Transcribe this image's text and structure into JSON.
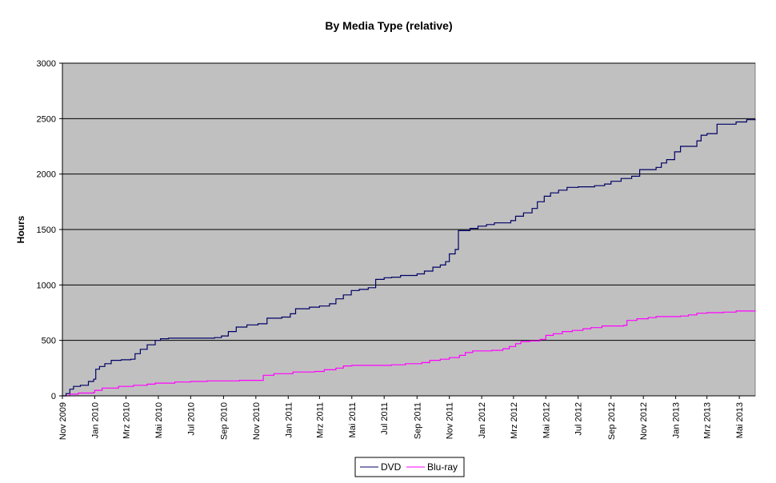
{
  "chart_data": {
    "type": "line",
    "title": "By Media Type (relative)",
    "xlabel": "",
    "ylabel": "Hours",
    "ylim": [
      0,
      3000
    ],
    "yticks": [
      "0",
      "500",
      "1000",
      "1500",
      "2000",
      "2500",
      "3000"
    ],
    "x_range": [
      "2009-11-01",
      "2013-05-31"
    ],
    "xticks": [
      {
        "date": "2009-11-01",
        "label": "Nov 2009"
      },
      {
        "date": "2010-01-01",
        "label": "Jan 2010"
      },
      {
        "date": "2010-03-01",
        "label": "Mrz 2010"
      },
      {
        "date": "2010-05-01",
        "label": "Mai 2010"
      },
      {
        "date": "2010-07-01",
        "label": "Jul 2010"
      },
      {
        "date": "2010-09-01",
        "label": "Sep 2010"
      },
      {
        "date": "2010-11-01",
        "label": "Nov 2010"
      },
      {
        "date": "2011-01-01",
        "label": "Jan 2011"
      },
      {
        "date": "2011-03-01",
        "label": "Mrz 2011"
      },
      {
        "date": "2011-05-01",
        "label": "Mai 2011"
      },
      {
        "date": "2011-07-01",
        "label": "Jul 2011"
      },
      {
        "date": "2011-09-01",
        "label": "Sep 2011"
      },
      {
        "date": "2011-11-01",
        "label": "Nov 2011"
      },
      {
        "date": "2012-01-01",
        "label": "Jan 2012"
      },
      {
        "date": "2012-03-01",
        "label": "Mrz 2012"
      },
      {
        "date": "2012-05-01",
        "label": "Mai 2012"
      },
      {
        "date": "2012-07-01",
        "label": "Jul 2012"
      },
      {
        "date": "2012-09-01",
        "label": "Sep 2012"
      },
      {
        "date": "2012-11-01",
        "label": "Nov 2012"
      },
      {
        "date": "2013-01-01",
        "label": "Jan 2013"
      },
      {
        "date": "2013-03-01",
        "label": "Mrz 2013"
      },
      {
        "date": "2013-05-01",
        "label": "Mai 2013"
      }
    ],
    "grid": true,
    "legend_position": "bottom",
    "series": [
      {
        "name": "DVD",
        "color": "#000066",
        "points": [
          [
            "2009-11-01",
            0
          ],
          [
            "2009-11-08",
            20
          ],
          [
            "2009-11-15",
            60
          ],
          [
            "2009-11-22",
            85
          ],
          [
            "2009-12-05",
            95
          ],
          [
            "2009-12-20",
            130
          ],
          [
            "2009-12-30",
            150
          ],
          [
            "2010-01-03",
            240
          ],
          [
            "2010-01-10",
            265
          ],
          [
            "2010-01-20",
            290
          ],
          [
            "2010-02-01",
            320
          ],
          [
            "2010-02-20",
            325
          ],
          [
            "2010-03-10",
            330
          ],
          [
            "2010-03-18",
            380
          ],
          [
            "2010-03-28",
            420
          ],
          [
            "2010-04-10",
            460
          ],
          [
            "2010-04-25",
            500
          ],
          [
            "2010-05-05",
            515
          ],
          [
            "2010-05-20",
            520
          ],
          [
            "2010-07-01",
            520
          ],
          [
            "2010-08-15",
            525
          ],
          [
            "2010-08-28",
            540
          ],
          [
            "2010-09-10",
            580
          ],
          [
            "2010-09-25",
            620
          ],
          [
            "2010-10-15",
            640
          ],
          [
            "2010-11-05",
            650
          ],
          [
            "2010-11-22",
            700
          ],
          [
            "2010-12-20",
            710
          ],
          [
            "2011-01-05",
            740
          ],
          [
            "2011-01-15",
            785
          ],
          [
            "2011-02-10",
            800
          ],
          [
            "2011-03-01",
            810
          ],
          [
            "2011-03-20",
            830
          ],
          [
            "2011-04-01",
            875
          ],
          [
            "2011-04-15",
            910
          ],
          [
            "2011-04-30",
            950
          ],
          [
            "2011-05-15",
            960
          ],
          [
            "2011-06-01",
            975
          ],
          [
            "2011-06-15",
            1050
          ],
          [
            "2011-07-01",
            1065
          ],
          [
            "2011-07-15",
            1070
          ],
          [
            "2011-08-01",
            1085
          ],
          [
            "2011-09-01",
            1100
          ],
          [
            "2011-09-15",
            1125
          ],
          [
            "2011-10-01",
            1160
          ],
          [
            "2011-10-15",
            1180
          ],
          [
            "2011-10-25",
            1210
          ],
          [
            "2011-11-01",
            1280
          ],
          [
            "2011-11-12",
            1320
          ],
          [
            "2011-11-18",
            1490
          ],
          [
            "2011-12-10",
            1510
          ],
          [
            "2011-12-25",
            1530
          ],
          [
            "2012-01-10",
            1545
          ],
          [
            "2012-01-25",
            1560
          ],
          [
            "2012-02-25",
            1580
          ],
          [
            "2012-03-05",
            1620
          ],
          [
            "2012-03-20",
            1650
          ],
          [
            "2012-04-05",
            1690
          ],
          [
            "2012-04-15",
            1750
          ],
          [
            "2012-04-28",
            1800
          ],
          [
            "2012-05-10",
            1830
          ],
          [
            "2012-05-25",
            1855
          ],
          [
            "2012-06-10",
            1880
          ],
          [
            "2012-07-01",
            1885
          ],
          [
            "2012-08-01",
            1895
          ],
          [
            "2012-08-20",
            1910
          ],
          [
            "2012-09-01",
            1935
          ],
          [
            "2012-09-20",
            1960
          ],
          [
            "2012-10-10",
            1980
          ],
          [
            "2012-10-25",
            2040
          ],
          [
            "2012-11-25",
            2060
          ],
          [
            "2012-12-05",
            2100
          ],
          [
            "2012-12-15",
            2130
          ],
          [
            "2012-12-30",
            2200
          ],
          [
            "2013-01-10",
            2250
          ],
          [
            "2013-02-10",
            2300
          ],
          [
            "2013-02-18",
            2350
          ],
          [
            "2013-03-01",
            2365
          ],
          [
            "2013-03-20",
            2450
          ],
          [
            "2013-04-25",
            2470
          ],
          [
            "2013-05-15",
            2490
          ],
          [
            "2013-05-31",
            2495
          ]
        ]
      },
      {
        "name": "Blu-ray",
        "color": "#ff00ff",
        "points": [
          [
            "2009-11-01",
            0
          ],
          [
            "2009-11-15",
            15
          ],
          [
            "2009-12-01",
            25
          ],
          [
            "2009-12-30",
            30
          ],
          [
            "2010-01-01",
            50
          ],
          [
            "2010-01-15",
            70
          ],
          [
            "2010-02-15",
            85
          ],
          [
            "2010-03-15",
            95
          ],
          [
            "2010-04-10",
            105
          ],
          [
            "2010-04-25",
            115
          ],
          [
            "2010-06-01",
            125
          ],
          [
            "2010-07-01",
            130
          ],
          [
            "2010-08-01",
            135
          ],
          [
            "2010-10-01",
            140
          ],
          [
            "2010-11-05",
            140
          ],
          [
            "2010-11-15",
            185
          ],
          [
            "2010-12-05",
            200
          ],
          [
            "2011-01-10",
            215
          ],
          [
            "2011-02-20",
            220
          ],
          [
            "2011-03-10",
            235
          ],
          [
            "2011-04-01",
            250
          ],
          [
            "2011-04-15",
            270
          ],
          [
            "2011-05-01",
            275
          ],
          [
            "2011-06-01",
            275
          ],
          [
            "2011-07-15",
            280
          ],
          [
            "2011-08-10",
            290
          ],
          [
            "2011-09-10",
            300
          ],
          [
            "2011-09-25",
            320
          ],
          [
            "2011-10-15",
            330
          ],
          [
            "2011-11-01",
            345
          ],
          [
            "2011-11-20",
            365
          ],
          [
            "2011-12-01",
            390
          ],
          [
            "2011-12-15",
            405
          ],
          [
            "2012-01-20",
            410
          ],
          [
            "2012-02-10",
            425
          ],
          [
            "2012-02-22",
            445
          ],
          [
            "2012-03-05",
            470
          ],
          [
            "2012-03-15",
            490
          ],
          [
            "2012-04-01",
            495
          ],
          [
            "2012-04-20",
            510
          ],
          [
            "2012-05-01",
            545
          ],
          [
            "2012-05-15",
            560
          ],
          [
            "2012-06-01",
            580
          ],
          [
            "2012-06-20",
            590
          ],
          [
            "2012-07-10",
            605
          ],
          [
            "2012-07-25",
            615
          ],
          [
            "2012-08-15",
            630
          ],
          [
            "2012-09-25",
            635
          ],
          [
            "2012-10-01",
            680
          ],
          [
            "2012-10-20",
            695
          ],
          [
            "2012-11-10",
            705
          ],
          [
            "2012-11-25",
            715
          ],
          [
            "2013-01-10",
            720
          ],
          [
            "2013-01-25",
            730
          ],
          [
            "2013-02-10",
            745
          ],
          [
            "2013-03-01",
            750
          ],
          [
            "2013-04-01",
            755
          ],
          [
            "2013-04-25",
            765
          ],
          [
            "2013-05-31",
            770
          ]
        ]
      }
    ]
  }
}
